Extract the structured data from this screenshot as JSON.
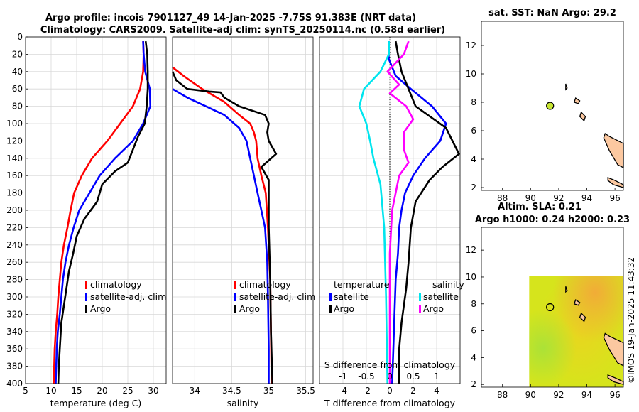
{
  "header": {
    "line1": "Argo profile: incois 7901127_49 14-Jan-2025 -7.75S 91.383E (NRT data)",
    "line2": "Climatology: CARS2009. Satellite-adj clim: synTS_20250114.nc (0.58d earlier)"
  },
  "colors": {
    "climatology": "#ff0000",
    "satellite": "#0000ff",
    "argo": "#000000",
    "sat_salinity": "#00e5ee",
    "argo_salinity": "#ff00ff",
    "land": "#fcc8a0"
  },
  "chart_data": [
    {
      "id": "temperature",
      "type": "line",
      "xlabel": "temperature (deg C)",
      "xlim": [
        5,
        32.5
      ],
      "xticks": [
        5,
        10,
        15,
        20,
        25,
        30
      ],
      "ylim": [
        400,
        0
      ],
      "yticks": [
        0,
        20,
        40,
        60,
        80,
        100,
        120,
        140,
        160,
        180,
        200,
        220,
        240,
        260,
        280,
        300,
        320,
        340,
        360,
        380,
        400
      ],
      "legend": [
        "climatology",
        "satellite-adj. clim",
        "Argo"
      ],
      "series": [
        {
          "name": "climatology",
          "color": "#ff0000",
          "points": [
            [
              28.0,
              5
            ],
            [
              28.1,
              20
            ],
            [
              28.0,
              40
            ],
            [
              27.4,
              60
            ],
            [
              26.0,
              80
            ],
            [
              23.5,
              100
            ],
            [
              21.0,
              120
            ],
            [
              18.0,
              140
            ],
            [
              16.0,
              160
            ],
            [
              14.5,
              180
            ],
            [
              13.8,
              200
            ],
            [
              13.2,
              220
            ],
            [
              12.5,
              240
            ],
            [
              12.0,
              260
            ],
            [
              11.7,
              280
            ],
            [
              11.4,
              300
            ],
            [
              11.2,
              320
            ],
            [
              10.9,
              340
            ],
            [
              10.7,
              360
            ],
            [
              10.6,
              380
            ],
            [
              10.5,
              400
            ]
          ]
        },
        {
          "name": "satellite-adj. clim",
          "color": "#0000ff",
          "points": [
            [
              28.0,
              5
            ],
            [
              28.1,
              20
            ],
            [
              28.4,
              40
            ],
            [
              29.3,
              60
            ],
            [
              29.4,
              80
            ],
            [
              28.0,
              100
            ],
            [
              26.0,
              120
            ],
            [
              22.5,
              140
            ],
            [
              19.5,
              160
            ],
            [
              17.5,
              180
            ],
            [
              15.5,
              200
            ],
            [
              14.4,
              220
            ],
            [
              13.5,
              240
            ],
            [
              12.8,
              260
            ],
            [
              12.3,
              280
            ],
            [
              12.0,
              300
            ],
            [
              11.7,
              320
            ],
            [
              11.3,
              340
            ],
            [
              11.1,
              360
            ],
            [
              11.0,
              380
            ],
            [
              10.9,
              400
            ]
          ]
        },
        {
          "name": "Argo",
          "color": "#000000",
          "points": [
            [
              28.5,
              5
            ],
            [
              28.8,
              20
            ],
            [
              28.9,
              40
            ],
            [
              28.9,
              60
            ],
            [
              28.7,
              80
            ],
            [
              28.3,
              100
            ],
            [
              27.0,
              115
            ],
            [
              26.0,
              130
            ],
            [
              25.0,
              145
            ],
            [
              22.5,
              155
            ],
            [
              20.0,
              170
            ],
            [
              19.0,
              190
            ],
            [
              16.5,
              210
            ],
            [
              15.0,
              230
            ],
            [
              14.3,
              250
            ],
            [
              13.5,
              270
            ],
            [
              13.0,
              290
            ],
            [
              12.5,
              310
            ],
            [
              12.0,
              330
            ],
            [
              11.7,
              360
            ],
            [
              11.5,
              380
            ],
            [
              11.4,
              400
            ]
          ]
        }
      ]
    },
    {
      "id": "salinity",
      "type": "line",
      "xlabel": "salinity",
      "xlim": [
        33.7,
        35.6
      ],
      "xticks": [
        34,
        34.5,
        35,
        35.5
      ],
      "ylim": [
        400,
        0
      ],
      "legend": [
        "climatology",
        "satellite-adj. clim",
        "Argo"
      ],
      "series": [
        {
          "name": "climatology",
          "color": "#ff0000",
          "points": [
            [
              33.7,
              35
            ],
            [
              33.85,
              45
            ],
            [
              34.1,
              60
            ],
            [
              34.4,
              75
            ],
            [
              34.6,
              90
            ],
            [
              34.75,
              100
            ],
            [
              34.8,
              110
            ],
            [
              34.83,
              120
            ],
            [
              34.85,
              140
            ],
            [
              34.9,
              160
            ],
            [
              34.96,
              180
            ],
            [
              34.99,
              220
            ],
            [
              35.02,
              280
            ],
            [
              35.03,
              340
            ],
            [
              35.04,
              400
            ]
          ]
        },
        {
          "name": "satellite-adj. clim",
          "color": "#0000ff",
          "points": [
            [
              33.7,
              60
            ],
            [
              33.9,
              70
            ],
            [
              34.15,
              80
            ],
            [
              34.4,
              90
            ],
            [
              34.6,
              105
            ],
            [
              34.7,
              120
            ],
            [
              34.75,
              140
            ],
            [
              34.8,
              160
            ],
            [
              34.85,
              180
            ],
            [
              34.9,
              200
            ],
            [
              34.95,
              220
            ],
            [
              34.98,
              260
            ],
            [
              34.99,
              300
            ],
            [
              35.0,
              360
            ],
            [
              35.0,
              400
            ]
          ]
        },
        {
          "name": "Argo",
          "color": "#000000",
          "points": [
            [
              33.7,
              40
            ],
            [
              33.75,
              50
            ],
            [
              33.9,
              60
            ],
            [
              34.2,
              63
            ],
            [
              34.35,
              64
            ],
            [
              34.4,
              70
            ],
            [
              34.6,
              80
            ],
            [
              34.95,
              90
            ],
            [
              35.0,
              100
            ],
            [
              34.98,
              110
            ],
            [
              35.0,
              120
            ],
            [
              35.1,
              135
            ],
            [
              34.9,
              150
            ],
            [
              35.0,
              165
            ],
            [
              35.0,
              220
            ],
            [
              35.02,
              280
            ],
            [
              35.03,
              340
            ],
            [
              35.05,
              400
            ]
          ]
        }
      ]
    },
    {
      "id": "difference",
      "type": "line",
      "xlabel": "T difference from climatology",
      "xlabel_top": "S difference from climatology",
      "xlim": [
        -6,
        6
      ],
      "xticks": [
        -4,
        -2,
        0,
        2,
        4
      ],
      "xlim_top": [
        -1.5,
        1.5
      ],
      "xticks_top": [
        -1,
        -0.5,
        0,
        0.5,
        1
      ],
      "ylim": [
        400,
        0
      ],
      "legend_left_title": "temperature",
      "legend_left": [
        "satellite",
        "Argo"
      ],
      "legend_right_title": "salinity",
      "legend_right": [
        "satellite",
        "Argo"
      ],
      "series": [
        {
          "name": "T satellite",
          "color": "#0000ff",
          "axis": "T",
          "points": [
            [
              -0.1,
              5
            ],
            [
              -0.1,
              25
            ],
            [
              0.5,
              45
            ],
            [
              1.8,
              60
            ],
            [
              3.6,
              80
            ],
            [
              4.8,
              100
            ],
            [
              4.3,
              120
            ],
            [
              3.0,
              140
            ],
            [
              2.0,
              160
            ],
            [
              1.3,
              180
            ],
            [
              1.0,
              200
            ],
            [
              0.8,
              220
            ],
            [
              0.7,
              250
            ],
            [
              0.5,
              280
            ],
            [
              0.4,
              320
            ],
            [
              0.3,
              360
            ],
            [
              0.2,
              400
            ]
          ]
        },
        {
          "name": "T Argo",
          "color": "#000000",
          "axis": "T",
          "points": [
            [
              0.5,
              5
            ],
            [
              0.7,
              20
            ],
            [
              1.0,
              40
            ],
            [
              1.6,
              60
            ],
            [
              2.2,
              80
            ],
            [
              4.8,
              105
            ],
            [
              5.9,
              135
            ],
            [
              4.5,
              150
            ],
            [
              3.4,
              165
            ],
            [
              2.2,
              190
            ],
            [
              1.8,
              220
            ],
            [
              1.6,
              260
            ],
            [
              1.4,
              290
            ],
            [
              1.0,
              330
            ],
            [
              0.8,
              360
            ],
            [
              0.8,
              400
            ]
          ]
        },
        {
          "name": "S satellite",
          "color": "#00e5ee",
          "axis": "S",
          "points": [
            [
              -0.02,
              5
            ],
            [
              -0.02,
              20
            ],
            [
              -0.2,
              40
            ],
            [
              -0.55,
              60
            ],
            [
              -0.65,
              80
            ],
            [
              -0.5,
              100
            ],
            [
              -0.42,
              120
            ],
            [
              -0.35,
              140
            ],
            [
              -0.2,
              170
            ],
            [
              -0.12,
              220
            ],
            [
              -0.08,
              300
            ],
            [
              -0.05,
              400
            ]
          ]
        },
        {
          "name": "S Argo",
          "color": "#ff00ff",
          "axis": "S",
          "points": [
            [
              0.4,
              5
            ],
            [
              0.3,
              20
            ],
            [
              -0.05,
              40
            ],
            [
              0.2,
              55
            ],
            [
              0.0,
              65
            ],
            [
              0.35,
              80
            ],
            [
              0.5,
              95
            ],
            [
              0.3,
              110
            ],
            [
              0.3,
              130
            ],
            [
              0.4,
              145
            ],
            [
              0.2,
              160
            ],
            [
              0.05,
              200
            ],
            [
              0.0,
              250
            ],
            [
              0.0,
              400
            ]
          ]
        }
      ]
    },
    {
      "id": "map_sst",
      "type": "scatter",
      "title": "sat. SST: NaN Argo: 29.2",
      "xlim": [
        86.5,
        96.6
      ],
      "ylim": [
        1.8,
        13.7
      ],
      "xticks": [
        88,
        90,
        92,
        94,
        96
      ],
      "yticks": [
        2,
        4,
        6,
        8,
        10,
        12
      ],
      "marker": [
        91.383,
        7.75
      ]
    },
    {
      "id": "map_sla",
      "type": "heatmap",
      "title_line1": "Altim. SLA: 0.21",
      "title_line2": "Argo h1000: 0.24 h2000: 0.23",
      "xlim": [
        86.5,
        96.6
      ],
      "ylim": [
        1.8,
        13.7
      ],
      "xticks": [
        88,
        90,
        92,
        94,
        96
      ],
      "yticks": [
        2,
        4,
        6,
        8,
        10,
        12
      ],
      "field_extent": [
        89.9,
        96.6,
        1.8,
        10.1
      ],
      "marker": [
        91.383,
        7.75
      ]
    }
  ],
  "footer": {
    "credit": "©IMOS 19-Jan-2025 11:43:32"
  }
}
